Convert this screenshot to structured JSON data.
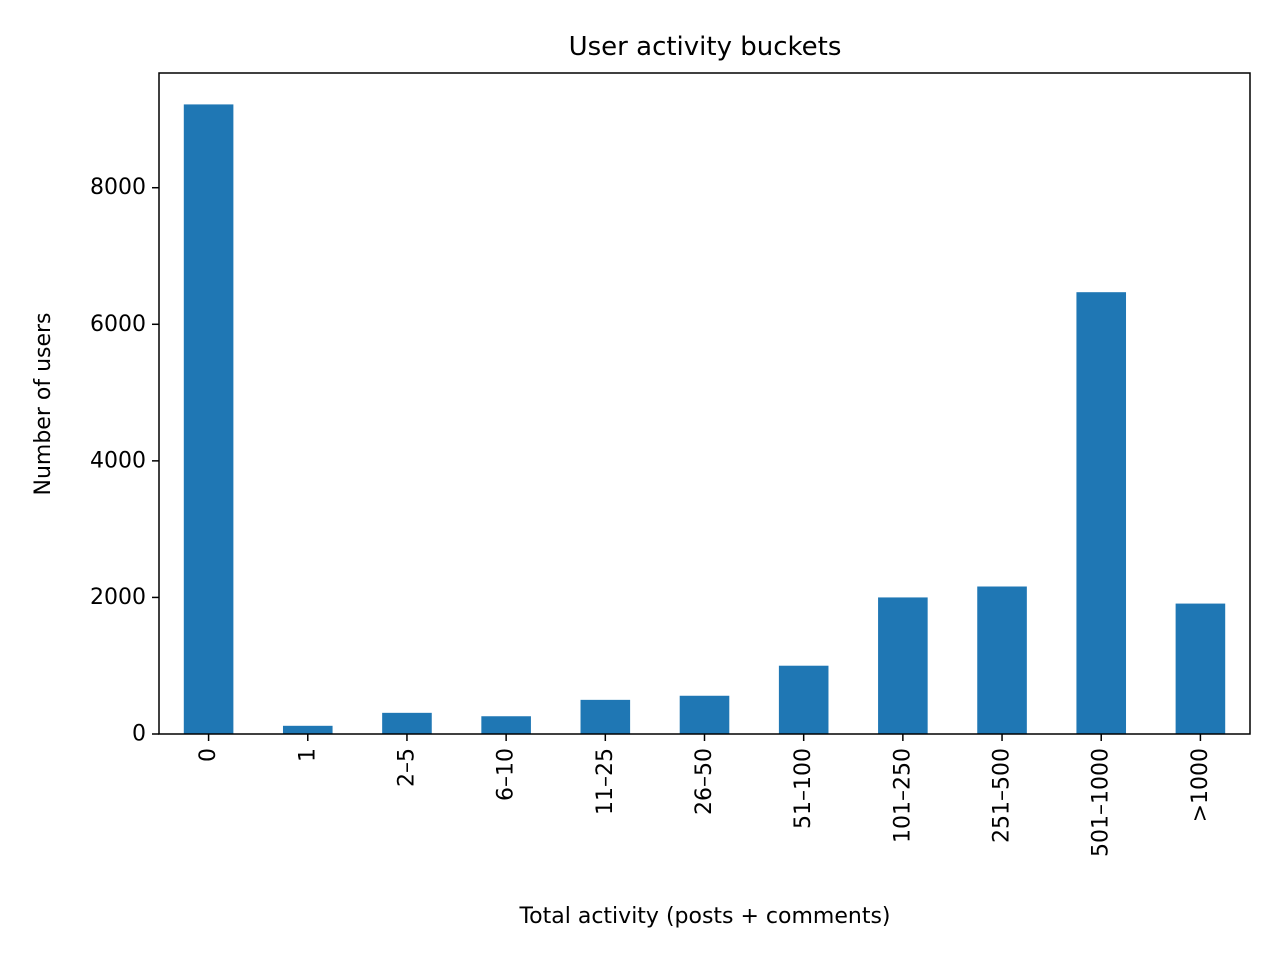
{
  "chart_data": {
    "type": "bar",
    "title": "User activity buckets",
    "xlabel": "Total activity (posts + comments)",
    "ylabel": "Number of users",
    "categories": [
      "0",
      "1",
      "2–5",
      "6–10",
      "11–25",
      "26–50",
      "51–100",
      "101–250",
      "251–500",
      "501–1000",
      ">1000"
    ],
    "values": [
      9220,
      120,
      310,
      260,
      500,
      560,
      1000,
      2000,
      2160,
      6470,
      1910
    ],
    "ylim": [
      0,
      9680
    ],
    "yticks": [
      0,
      2000,
      4000,
      6000,
      8000
    ],
    "bar_color": "#1f77b4",
    "grid": false,
    "legend": "none"
  }
}
